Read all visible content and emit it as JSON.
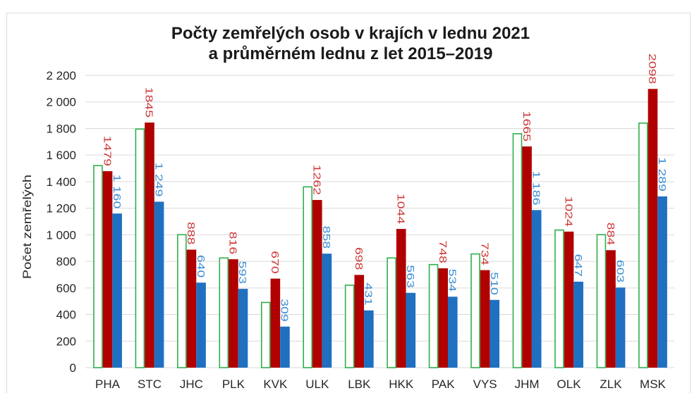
{
  "chart_data": {
    "type": "bar",
    "title_lines": [
      "Počty zemřelých osob v krajích v lednu 2021",
      "a průměrném lednu z let 2015–2019"
    ],
    "xlabel": "",
    "ylabel": "Počet zemřelých",
    "ylim": [
      0,
      2200
    ],
    "yticks": [
      0,
      200,
      400,
      600,
      800,
      1000,
      1200,
      1400,
      1600,
      1800,
      2000,
      2200
    ],
    "ytick_labels": [
      "0",
      "200",
      "400",
      "600",
      "800",
      "1 000",
      "1 200",
      "1 400",
      "1 600",
      "1 800",
      "2 000",
      "2 200"
    ],
    "grid": true,
    "gridline_color": "#d9d9d9",
    "categories": [
      "PHA",
      "STC",
      "JHC",
      "PLK",
      "KVK",
      "ULK",
      "LBK",
      "HKK",
      "PAK",
      "VYS",
      "JHM",
      "OLK",
      "ZLK",
      "MSK"
    ],
    "series": [
      {
        "fill": "#ffffff",
        "stroke": "#2db04b",
        "values": [
          1525,
          1800,
          1005,
          830,
          495,
          1365,
          625,
          830,
          780,
          860,
          1765,
          1040,
          1005,
          1845
        ]
      },
      {
        "fill": "#b00000",
        "label_color": "#cf3a3a",
        "values": [
          1479,
          1845,
          888,
          816,
          670,
          1262,
          698,
          1044,
          748,
          734,
          1665,
          1024,
          884,
          2098
        ],
        "labels": [
          "1479",
          "1845",
          "888",
          "816",
          "670",
          "1262",
          "698",
          "1044",
          "748",
          "734",
          "1665",
          "1024",
          "884",
          "2098"
        ]
      },
      {
        "fill": "#1f70c1",
        "label_color": "#3b8ed3",
        "values": [
          1160,
          1249,
          640,
          593,
          309,
          858,
          431,
          563,
          534,
          510,
          1186,
          647,
          603,
          1289
        ],
        "labels": [
          "1 160",
          "1 249",
          "640",
          "593",
          "309",
          "858",
          "431",
          "563",
          "534",
          "510",
          "1 186",
          "647",
          "603",
          "1 289"
        ]
      }
    ]
  }
}
